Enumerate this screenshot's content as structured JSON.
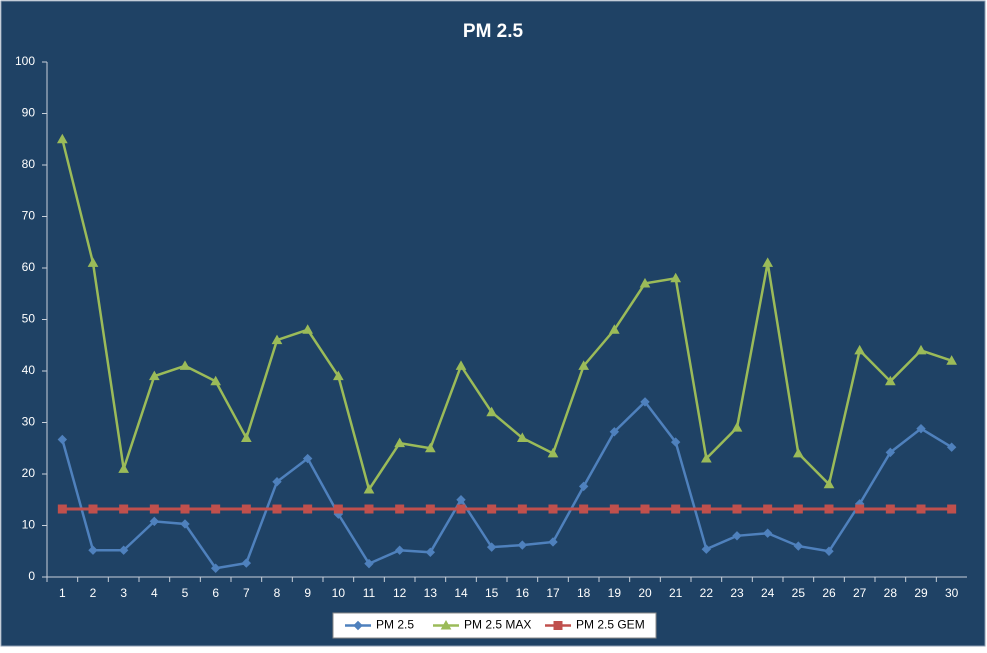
{
  "chart_data": {
    "type": "line",
    "title": "PM 2.5",
    "categories": [
      "1",
      "2",
      "3",
      "4",
      "5",
      "6",
      "7",
      "8",
      "9",
      "10",
      "11",
      "12",
      "13",
      "14",
      "15",
      "16",
      "17",
      "18",
      "19",
      "20",
      "21",
      "22",
      "23",
      "24",
      "25",
      "26",
      "27",
      "28",
      "29",
      "30"
    ],
    "series": [
      {
        "name": "PM 2.5",
        "color": "#4f81bd",
        "marker": "diamond",
        "values": [
          26.7,
          5.2,
          5.2,
          10.8,
          10.3,
          1.7,
          2.7,
          18.5,
          23,
          12.2,
          2.6,
          5.2,
          4.8,
          15,
          5.8,
          6.2,
          6.8,
          17.6,
          28.2,
          34,
          26.2,
          5.4,
          8,
          8.5,
          6,
          5,
          14.2,
          24.2,
          28.8,
          25.2
        ]
      },
      {
        "name": "PM 2.5 MAX",
        "color": "#9bbb59",
        "marker": "triangle",
        "values": [
          85,
          61,
          21,
          39,
          41,
          38,
          27,
          46,
          48,
          39,
          17,
          26,
          25,
          41,
          32,
          27,
          24,
          41,
          48,
          57,
          58,
          23,
          29,
          61,
          24,
          18,
          44,
          38,
          44,
          42
        ]
      },
      {
        "name": "PM 2.5 GEM",
        "color": "#c0504d",
        "marker": "square",
        "values": [
          13.2,
          13.2,
          13.2,
          13.2,
          13.2,
          13.2,
          13.2,
          13.2,
          13.2,
          13.2,
          13.2,
          13.2,
          13.2,
          13.2,
          13.2,
          13.2,
          13.2,
          13.2,
          13.2,
          13.2,
          13.2,
          13.2,
          13.2,
          13.2,
          13.2,
          13.2,
          13.2,
          13.2,
          13.2,
          13.2
        ]
      }
    ],
    "ylim": [
      0,
      100
    ],
    "yticks": [
      0,
      10,
      20,
      30,
      40,
      50,
      60,
      70,
      80,
      90,
      100
    ],
    "grid": false,
    "legend": "bottom"
  }
}
